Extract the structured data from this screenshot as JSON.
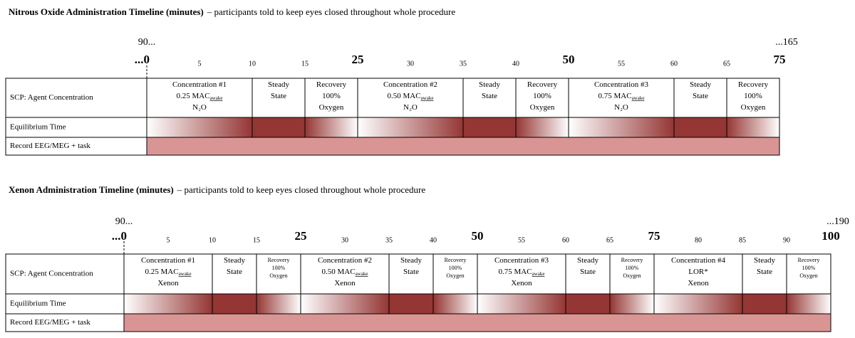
{
  "timelines": [
    {
      "title": "Nitrous Oxide Administration Timeline (minutes)",
      "subtitle": "– participants told to keep eyes closed throughout whole procedure",
      "start_note": "90...",
      "end_note": "...165",
      "ticks": [
        {
          "label": "...0",
          "major": true
        },
        {
          "label": "5",
          "major": false
        },
        {
          "label": "10",
          "major": false
        },
        {
          "label": "15",
          "major": false
        },
        {
          "label": "25",
          "major": true
        },
        {
          "label": "30",
          "major": false
        },
        {
          "label": "35",
          "major": false
        },
        {
          "label": "40",
          "major": false
        },
        {
          "label": "50",
          "major": true
        },
        {
          "label": "55",
          "major": false
        },
        {
          "label": "60",
          "major": false
        },
        {
          "label": "65",
          "major": false
        },
        {
          "label": "75",
          "major": true
        }
      ],
      "row_labels": [
        "SCP: Agent Concentration",
        "Equilibrium Time",
        "Record EEG/MEG + task"
      ],
      "segments": [
        {
          "kind": "concentration",
          "lines": [
            "Concentration #1",
            "0.25 MAC",
            "N₂O"
          ],
          "sub": "awake"
        },
        {
          "kind": "steady",
          "lines": [
            "Steady",
            "State"
          ]
        },
        {
          "kind": "recovery",
          "lines": [
            "Recovery",
            "100%",
            "Oxygen"
          ]
        },
        {
          "kind": "concentration",
          "lines": [
            "Concentration #2",
            "0.50 MAC",
            "N₂O"
          ],
          "sub": "awake"
        },
        {
          "kind": "steady",
          "lines": [
            "Steady",
            "State"
          ]
        },
        {
          "kind": "recovery",
          "lines": [
            "Recovery",
            "100%",
            "Oxygen"
          ]
        },
        {
          "kind": "concentration",
          "lines": [
            "Concentration #3",
            "0.75 MAC",
            "N₂O"
          ],
          "sub": "awake"
        },
        {
          "kind": "steady",
          "lines": [
            "Steady",
            "State"
          ]
        },
        {
          "kind": "recovery",
          "lines": [
            "Recovery",
            "100%",
            "Oxygen"
          ]
        }
      ]
    },
    {
      "title": "Xenon Administration Timeline (minutes)",
      "subtitle": "– participants told to keep eyes closed throughout whole procedure",
      "start_note": "90...",
      "end_note": "...190",
      "ticks": [
        {
          "label": "...0",
          "major": true
        },
        {
          "label": "5",
          "major": false
        },
        {
          "label": "10",
          "major": false
        },
        {
          "label": "15",
          "major": false
        },
        {
          "label": "25",
          "major": true
        },
        {
          "label": "30",
          "major": false
        },
        {
          "label": "35",
          "major": false
        },
        {
          "label": "40",
          "major": false
        },
        {
          "label": "50",
          "major": true
        },
        {
          "label": "55",
          "major": false
        },
        {
          "label": "60",
          "major": false
        },
        {
          "label": "65",
          "major": false
        },
        {
          "label": "75",
          "major": true
        },
        {
          "label": "80",
          "major": false
        },
        {
          "label": "85",
          "major": false
        },
        {
          "label": "90",
          "major": false
        },
        {
          "label": "100",
          "major": true
        }
      ],
      "row_labels": [
        "SCP: Agent Concentration",
        "Equilibrium Time",
        "Record EEG/MEG + task"
      ],
      "segments": [
        {
          "kind": "concentration",
          "lines": [
            "Concentration #1",
            "0.25 MAC",
            "Xenon"
          ],
          "sub": "awake"
        },
        {
          "kind": "steady",
          "lines": [
            "Steady",
            "State"
          ]
        },
        {
          "kind": "recovery",
          "lines": [
            "Recovery",
            "100%",
            "Oxygen"
          ]
        },
        {
          "kind": "concentration",
          "lines": [
            "Concentration #2",
            "0.50 MAC",
            "Xenon"
          ],
          "sub": "awake"
        },
        {
          "kind": "steady",
          "lines": [
            "Steady",
            "State"
          ]
        },
        {
          "kind": "recovery",
          "lines": [
            "Recovery",
            "100%",
            "Oxygen"
          ]
        },
        {
          "kind": "concentration",
          "lines": [
            "Concentration #3",
            "0.75 MAC",
            "Xenon"
          ],
          "sub": "awake"
        },
        {
          "kind": "steady",
          "lines": [
            "Steady",
            "State"
          ]
        },
        {
          "kind": "recovery",
          "lines": [
            "Recovery",
            "100%",
            "Oxygen"
          ]
        },
        {
          "kind": "concentration",
          "lines": [
            "Concentration #4",
            "LOR*",
            "Xenon"
          ]
        },
        {
          "kind": "steady",
          "lines": [
            "Steady",
            "State"
          ]
        },
        {
          "kind": "recovery",
          "lines": [
            "Recovery",
            "100%",
            "Oxygen"
          ]
        }
      ]
    }
  ]
}
